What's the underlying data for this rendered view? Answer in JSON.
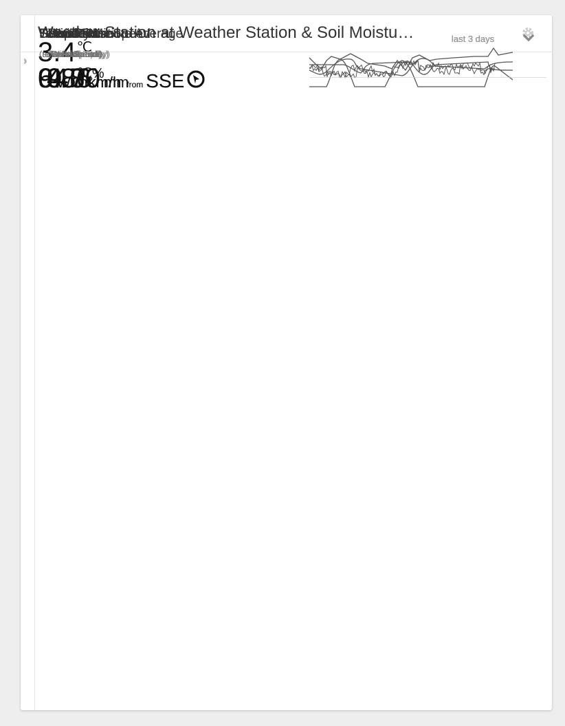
{
  "header": {
    "title": "Weather Station at Weather Station & Soil Moistu…"
  },
  "rows": [
    {
      "label": "Temperature",
      "sublabel": "(temperature)",
      "value": "9.8",
      "unit": "℃",
      "range": "last 3 days"
    },
    {
      "label": "Humidity",
      "sublabel": "(relativeHumidity)",
      "value": "64.6",
      "unit": "%",
      "range": "last 3 days"
    },
    {
      "label": "Dew Point",
      "value": "3.4",
      "unit": "℃",
      "range": "last 3 days"
    },
    {
      "label": "Solar Radiation",
      "sublabel": "(solarRadiation)",
      "value": "0",
      "unit": "W/m²",
      "range": "last 3 days"
    },
    {
      "label": "Wind 5 Minute Average",
      "sublabel": "(Wind Speed)",
      "value": "4.8",
      "unit": "km/h",
      "from": "from",
      "direction": "SSE",
      "range": "last 3 days"
    },
    {
      "label": "Wind Gust Speed",
      "sublabel": "(Gust Speed)",
      "value": "9.7",
      "unit": "km/h",
      "from": "from",
      "direction": "SSE",
      "range": "last 3 days"
    },
    {
      "label": "Rainfall",
      "sublabel": "(Rainfall Today)",
      "value": "0.00",
      "unit": "mm",
      "range": "last 3 days"
    }
  ]
}
